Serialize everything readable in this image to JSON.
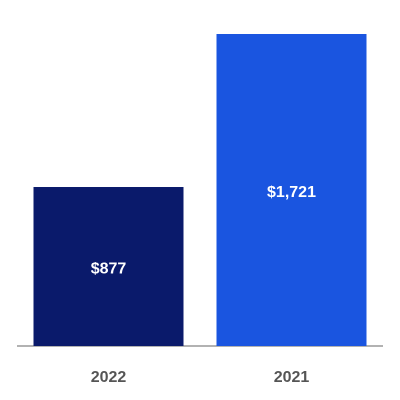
{
  "chart_data": {
    "type": "bar",
    "categories": [
      "2022",
      "2021"
    ],
    "values": [
      877,
      1721
    ],
    "value_labels": [
      "$877",
      "$1,721"
    ],
    "colors": [
      "#0a1a6b",
      "#1a55e0"
    ]
  }
}
